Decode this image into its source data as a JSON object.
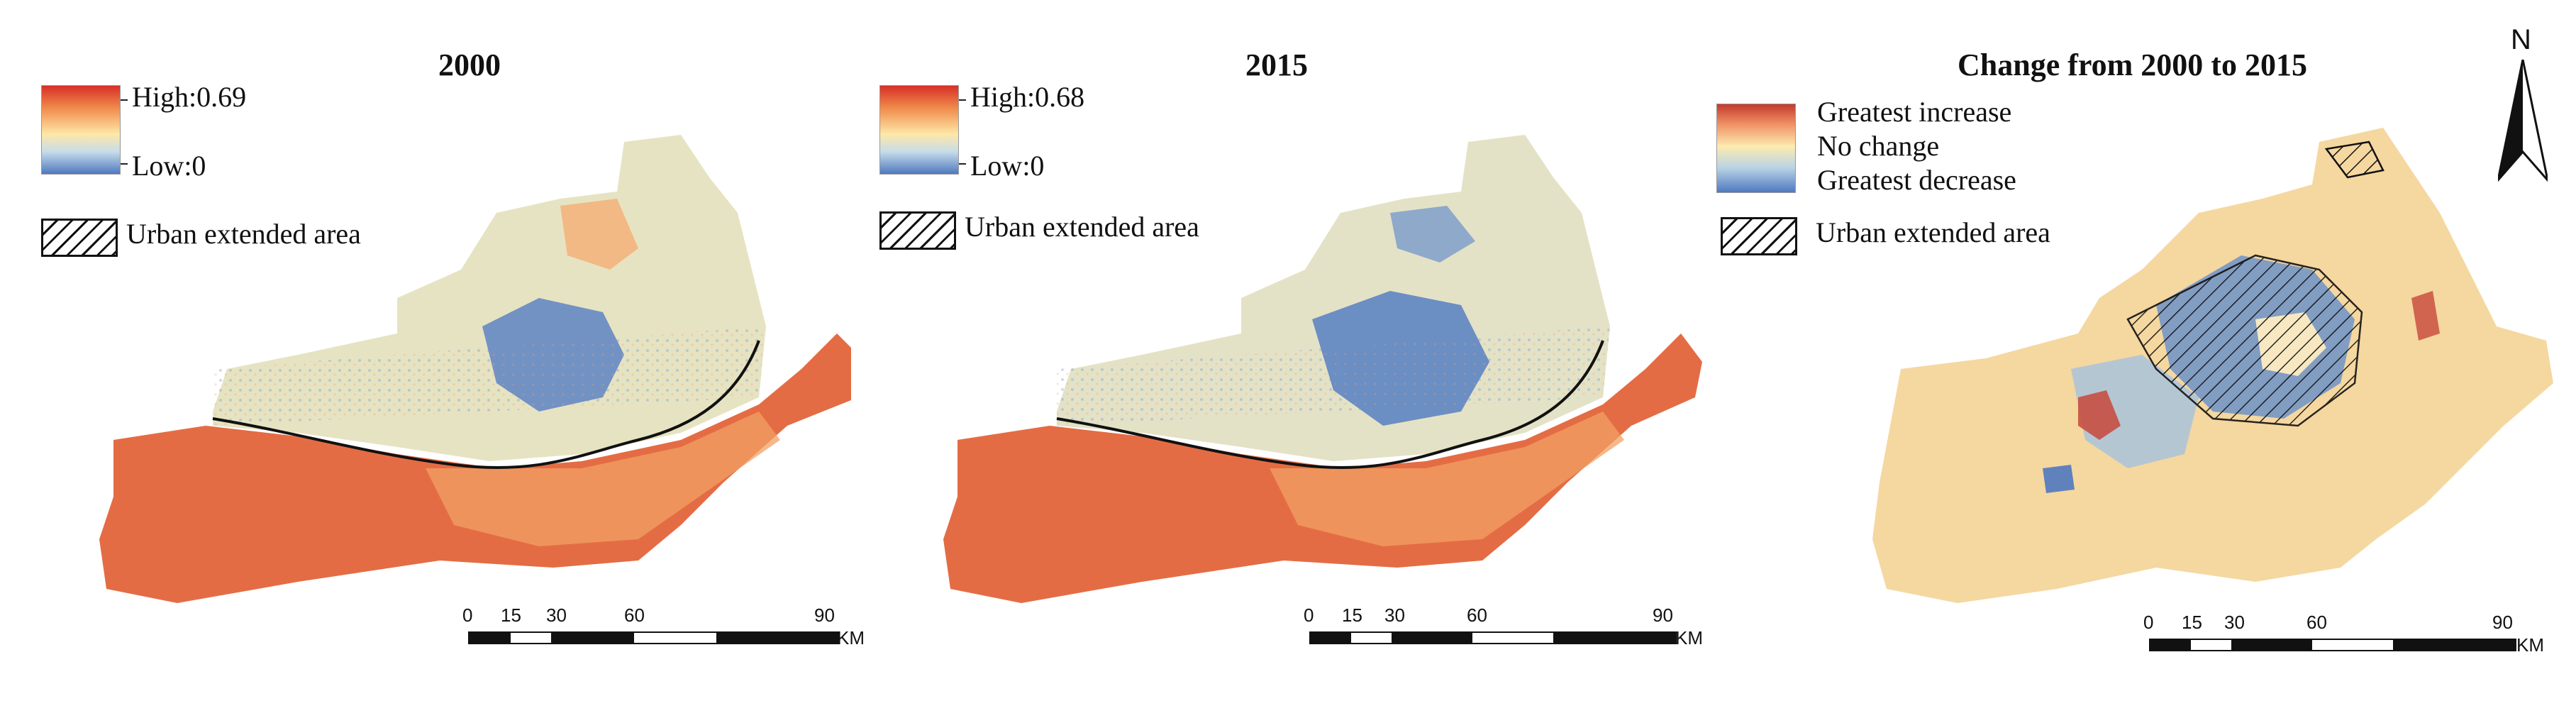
{
  "panels": [
    {
      "title": "2000",
      "legend_high": "High:0.69",
      "legend_low": "Low:0",
      "urban_label": "Urban extended area",
      "scale_ticks": [
        "0",
        "15",
        "30",
        "60",
        "90"
      ],
      "scale_unit": "KM"
    },
    {
      "title": "2015",
      "legend_high": "High:0.68",
      "legend_low": "Low:0",
      "urban_label": "Urban extended area",
      "scale_ticks": [
        "0",
        "15",
        "30",
        "60",
        "90"
      ],
      "scale_unit": "KM"
    },
    {
      "title": "Change from 2000 to 2015",
      "legend_top": "Greatest increase",
      "legend_mid": "No change",
      "legend_bottom": "Greatest decrease",
      "urban_label": "Urban extended area",
      "scale_ticks": [
        "0",
        "15",
        "30",
        "60",
        "90"
      ],
      "scale_unit": "KM"
    }
  ],
  "north_arrow_label": "N",
  "colors": {
    "high": "#d73027",
    "mid": "#fee8a8",
    "low": "#4f79c0",
    "change_background": "#f6d9a0"
  }
}
